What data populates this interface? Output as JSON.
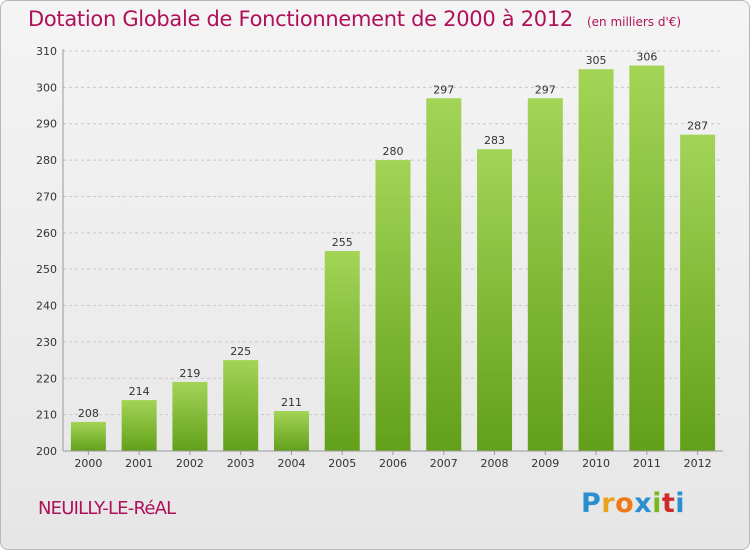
{
  "title": "Dotation Globale de Fonctionnement de 2000 à 2012",
  "unit": "(en milliers d'€)",
  "commune": "NEUILLY-LE-RéAL",
  "logo": {
    "letters": [
      "P",
      "r",
      "o",
      "x",
      "i",
      "t",
      "i"
    ],
    "colors": [
      "#2a8fd0",
      "#e8a21c",
      "#f07818",
      "#2a8fd0",
      "#7ab820",
      "#d02a2a",
      "#2a8fd0"
    ]
  },
  "colors": {
    "bar_top": "#a3d456",
    "bar_bottom": "#62a01a",
    "title": "#b0105a",
    "grid": "#c8c8c8"
  },
  "chart_data": {
    "type": "bar",
    "title": "Dotation Globale de Fonctionnement de 2000 à 2012",
    "subtitle": "(en milliers d'€)",
    "xlabel": "",
    "ylabel": "",
    "categories": [
      "2000",
      "2001",
      "2002",
      "2003",
      "2004",
      "2005",
      "2006",
      "2007",
      "2008",
      "2009",
      "2010",
      "2011",
      "2012"
    ],
    "values": [
      208,
      214,
      219,
      225,
      211,
      255,
      280,
      297,
      283,
      297,
      305,
      306,
      287
    ],
    "ylim": [
      200,
      310
    ],
    "yticks": [
      200,
      210,
      220,
      230,
      240,
      250,
      260,
      270,
      280,
      290,
      300,
      310
    ],
    "grid": true,
    "legend": "none"
  }
}
